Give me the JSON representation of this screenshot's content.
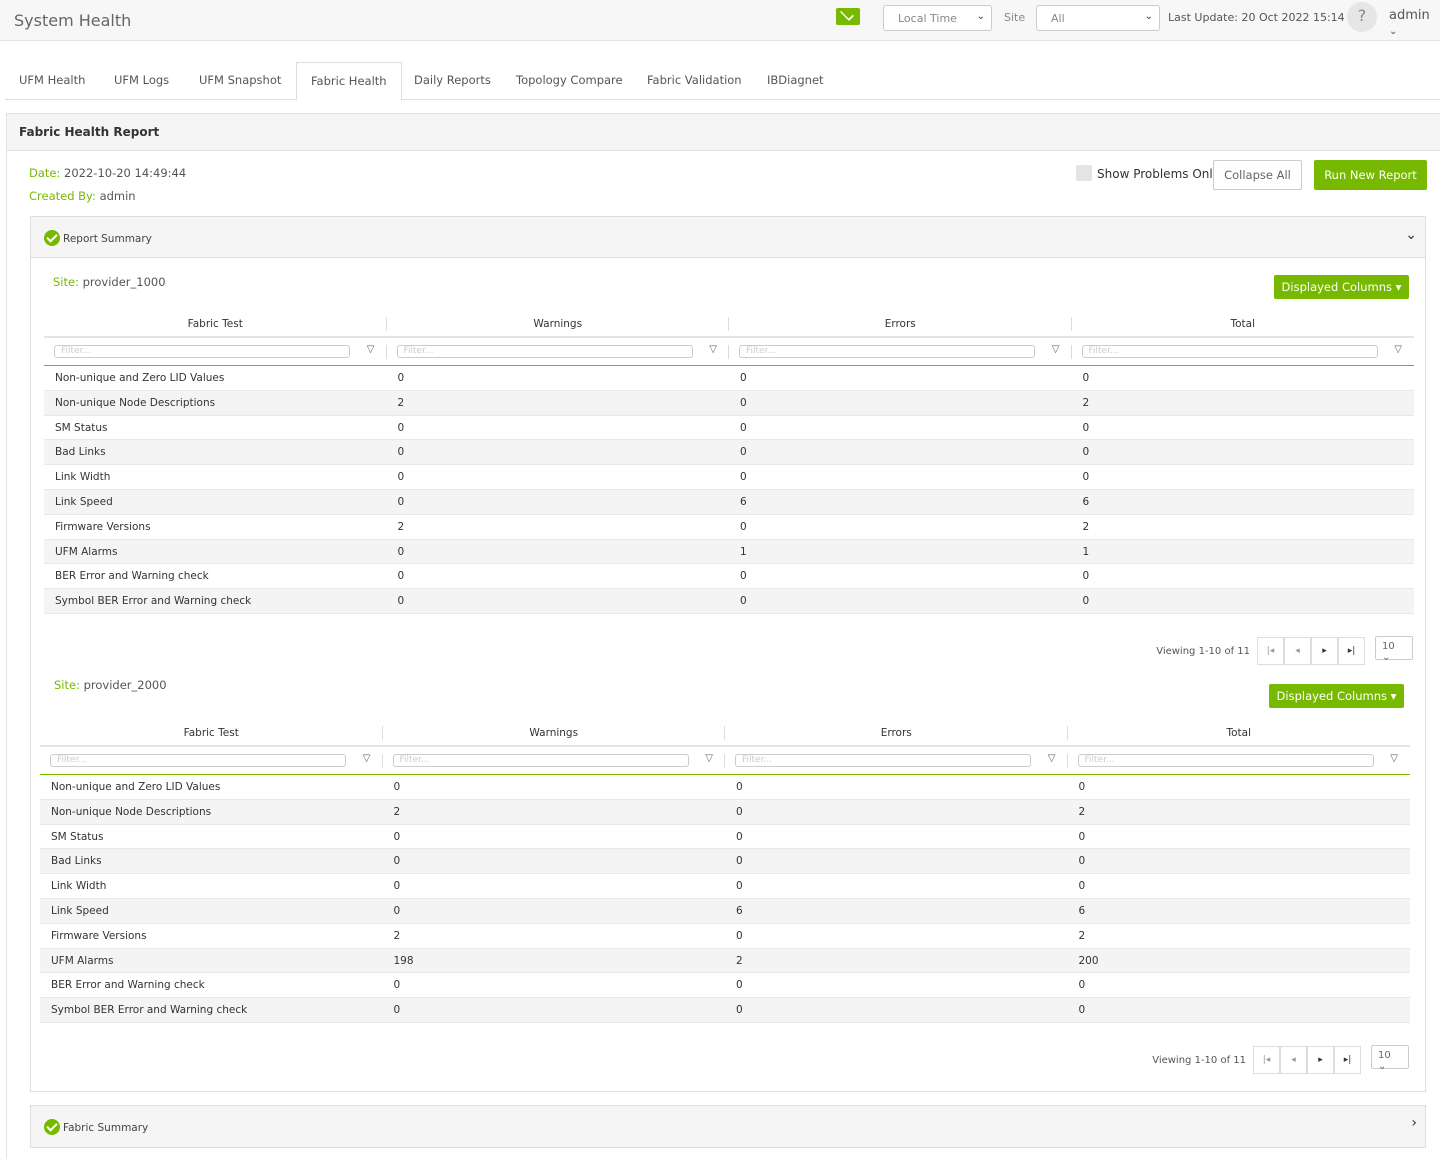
{
  "header": {
    "title": "System Health",
    "time_select": "Local Time",
    "site_label": "Site",
    "site_select": "All",
    "last_update": "Last Update: 20 Oct 2022 15:14",
    "help": "?",
    "user": "admin",
    "icons": {
      "mail": "mail-icon",
      "help": "help-icon"
    },
    "accent": "#76b900"
  },
  "tabs": [
    {
      "label": "UFM Health"
    },
    {
      "label": "UFM Logs"
    },
    {
      "label": "UFM Snapshot"
    },
    {
      "label": "Fabric Health",
      "active": true
    },
    {
      "label": "Daily Reports"
    },
    {
      "label": "Topology Compare"
    },
    {
      "label": "Fabric Validation"
    },
    {
      "label": "IBDiagnet"
    }
  ],
  "report": {
    "title": "Fabric Health Report",
    "date_label": "Date:",
    "date": "2022-10-20 14:49:44",
    "created_label": "Created By:",
    "created_by": "admin",
    "show_problems": "Show Problems Only",
    "show_problems_checked": false,
    "collapse_all": "Collapse All",
    "run_new": "Run New Report"
  },
  "summary": {
    "title": "Report Summary",
    "expanded": true
  },
  "fabric_summary": {
    "title": "Fabric Summary",
    "expanded": false
  },
  "columns": [
    "Fabric Test",
    "Warnings",
    "Errors",
    "Total"
  ],
  "filter_placeholder": "Filter...",
  "displayed_columns": "Displayed Columns ▾",
  "sites": [
    {
      "label": "Site:",
      "name": "provider_1000",
      "viewing": "Viewing 1-10 of 11",
      "page_size": "10",
      "rows": [
        [
          "Non-unique and Zero LID Values",
          "0",
          "0",
          "0"
        ],
        [
          "Non-unique Node Descriptions",
          "2",
          "0",
          "2"
        ],
        [
          "SM Status",
          "0",
          "0",
          "0"
        ],
        [
          "Bad Links",
          "0",
          "0",
          "0"
        ],
        [
          "Link Width",
          "0",
          "0",
          "0"
        ],
        [
          "Link Speed",
          "0",
          "6",
          "6"
        ],
        [
          "Firmware Versions",
          "2",
          "0",
          "2"
        ],
        [
          "UFM Alarms",
          "0",
          "1",
          "1"
        ],
        [
          "BER Error and Warning check",
          "0",
          "0",
          "0"
        ],
        [
          "Symbol BER Error and Warning check",
          "0",
          "0",
          "0"
        ]
      ]
    },
    {
      "label": "Site:",
      "name": "provider_2000",
      "viewing": "Viewing 1-10 of 11",
      "page_size": "10",
      "rows": [
        [
          "Non-unique and Zero LID Values",
          "0",
          "0",
          "0"
        ],
        [
          "Non-unique Node Descriptions",
          "2",
          "0",
          "2"
        ],
        [
          "SM Status",
          "0",
          "0",
          "0"
        ],
        [
          "Bad Links",
          "0",
          "0",
          "0"
        ],
        [
          "Link Width",
          "0",
          "0",
          "0"
        ],
        [
          "Link Speed",
          "0",
          "6",
          "6"
        ],
        [
          "Firmware Versions",
          "2",
          "0",
          "2"
        ],
        [
          "UFM Alarms",
          "198",
          "2",
          "200"
        ],
        [
          "BER Error and Warning check",
          "0",
          "0",
          "0"
        ],
        [
          "Symbol BER Error and Warning check",
          "0",
          "0",
          "0"
        ]
      ]
    }
  ]
}
